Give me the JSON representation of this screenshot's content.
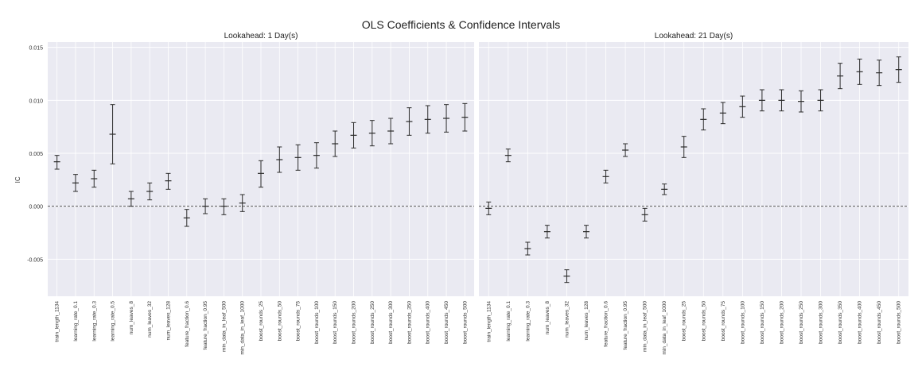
{
  "figure": {
    "title": "OLS Coefficients & Confidence Intervals"
  },
  "chart_data": [
    {
      "type": "errorbar",
      "title": "Lookahead: 1 Day(s)",
      "xlabel": "",
      "ylabel": "IC",
      "ylim": [
        -0.0085,
        0.0155
      ],
      "yticks": [
        -0.005,
        0.0,
        0.005,
        0.01,
        0.015
      ],
      "ytick_labels": [
        "-0.005",
        "0.000",
        "0.005",
        "0.010",
        "0.015"
      ],
      "grid": true,
      "reference_line": 0.0,
      "categories": [
        "train_length_1134",
        "learning_rate_0.1",
        "learning_rate_0.3",
        "learning_rate_0.5",
        "num_leaves_8",
        "num_leaves_32",
        "num_leaves_128",
        "feature_fraction_0.6",
        "feature_fraction_0.95",
        "min_data_in_leaf_500",
        "min_data_in_leaf_1000",
        "boost_rounds_25",
        "boost_rounds_50",
        "boost_rounds_75",
        "boost_rounds_100",
        "boost_rounds_150",
        "boost_rounds_200",
        "boost_rounds_250",
        "boost_rounds_300",
        "boost_rounds_350",
        "boost_rounds_400",
        "boost_rounds_450",
        "boost_rounds_500"
      ],
      "coef": [
        0.0042,
        0.0022,
        0.0026,
        0.0068,
        0.0007,
        0.0014,
        0.0024,
        -0.0011,
        0.0,
        0.0,
        0.0003,
        0.0031,
        0.0044,
        0.0046,
        0.0048,
        0.0059,
        0.0067,
        0.0069,
        0.0071,
        0.008,
        0.0082,
        0.0083,
        0.0084
      ],
      "lower": [
        0.0035,
        0.0014,
        0.0018,
        0.004,
        0.0,
        0.0006,
        0.0016,
        -0.0019,
        -0.0007,
        -0.0008,
        -0.0005,
        0.0018,
        0.0032,
        0.0034,
        0.0036,
        0.0047,
        0.0055,
        0.0057,
        0.0059,
        0.0067,
        0.0069,
        0.007,
        0.0071
      ],
      "upper": [
        0.0048,
        0.003,
        0.0034,
        0.0096,
        0.0014,
        0.0022,
        0.0031,
        -0.0003,
        0.0007,
        0.0007,
        0.0011,
        0.0043,
        0.0056,
        0.0058,
        0.006,
        0.0071,
        0.0079,
        0.0081,
        0.0083,
        0.0093,
        0.0095,
        0.0096,
        0.0097
      ]
    },
    {
      "type": "errorbar",
      "title": "Lookahead: 21 Day(s)",
      "xlabel": "",
      "ylabel": "",
      "ylim": [
        -0.0085,
        0.0155
      ],
      "yticks": [
        -0.005,
        0.0,
        0.005,
        0.01,
        0.015
      ],
      "grid": true,
      "reference_line": 0.0,
      "categories": [
        "train_length_1134",
        "learning_rate_0.1",
        "learning_rate_0.3",
        "num_leaves_8",
        "num_leaves_32",
        "num_leaves_128",
        "feature_fraction_0.6",
        "feature_fraction_0.95",
        "min_data_in_leaf_500",
        "min_data_in_leaf_1000",
        "boost_rounds_25",
        "boost_rounds_50",
        "boost_rounds_75",
        "boost_rounds_100",
        "boost_rounds_150",
        "boost_rounds_200",
        "boost_rounds_250",
        "boost_rounds_300",
        "boost_rounds_350",
        "boost_rounds_400",
        "boost_rounds_450",
        "boost_rounds_500"
      ],
      "coef": [
        -0.0002,
        0.0048,
        -0.004,
        -0.0024,
        -0.0066,
        -0.0024,
        0.0028,
        0.0053,
        -0.0008,
        0.0016,
        0.0056,
        0.0082,
        0.0088,
        0.0094,
        0.01,
        0.01,
        0.0099,
        0.01,
        0.0123,
        0.0127,
        0.0126,
        0.0129
      ],
      "lower": [
        -0.0008,
        0.0042,
        -0.0046,
        -0.003,
        -0.0072,
        -0.003,
        0.0022,
        0.0047,
        -0.0014,
        0.0011,
        0.0046,
        0.0072,
        0.0078,
        0.0084,
        0.009,
        0.009,
        0.0089,
        0.009,
        0.0111,
        0.0115,
        0.0114,
        0.0117
      ],
      "upper": [
        0.0004,
        0.0054,
        -0.0034,
        -0.0018,
        -0.006,
        -0.0018,
        0.0034,
        0.0059,
        -0.0002,
        0.0021,
        0.0066,
        0.0092,
        0.0098,
        0.0104,
        0.011,
        0.011,
        0.0109,
        0.011,
        0.0135,
        0.0139,
        0.0138,
        0.0141
      ]
    }
  ]
}
